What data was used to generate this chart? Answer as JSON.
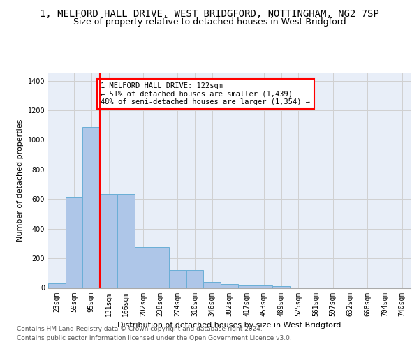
{
  "title_line1": "1, MELFORD HALL DRIVE, WEST BRIDGFORD, NOTTINGHAM, NG2 7SP",
  "title_line2": "Size of property relative to detached houses in West Bridgford",
  "xlabel": "Distribution of detached houses by size in West Bridgford",
  "ylabel": "Number of detached properties",
  "footer_line1": "Contains HM Land Registry data © Crown copyright and database right 2024.",
  "footer_line2": "Contains public sector information licensed under the Open Government Licence v3.0.",
  "bar_labels": [
    "23sqm",
    "59sqm",
    "95sqm",
    "131sqm",
    "166sqm",
    "202sqm",
    "238sqm",
    "274sqm",
    "310sqm",
    "346sqm",
    "382sqm",
    "417sqm",
    "453sqm",
    "489sqm",
    "525sqm",
    "561sqm",
    "597sqm",
    "632sqm",
    "668sqm",
    "704sqm",
    "740sqm"
  ],
  "bar_values": [
    30,
    615,
    1085,
    635,
    635,
    275,
    275,
    120,
    120,
    40,
    25,
    15,
    15,
    10,
    0,
    0,
    0,
    0,
    0,
    0,
    0
  ],
  "bar_color": "#aec6e8",
  "bar_edge_color": "#6aaed6",
  "grid_color": "#d0d0d0",
  "background_color": "#e8eef8",
  "vline_color": "red",
  "annotation_text": "1 MELFORD HALL DRIVE: 122sqm\n← 51% of detached houses are smaller (1,439)\n48% of semi-detached houses are larger (1,354) →",
  "annotation_box_color": "white",
  "annotation_box_edge": "red",
  "ylim": [
    0,
    1450
  ],
  "yticks": [
    0,
    200,
    400,
    600,
    800,
    1000,
    1200,
    1400
  ],
  "title_fontsize": 10,
  "subtitle_fontsize": 9,
  "axis_label_fontsize": 8,
  "tick_fontsize": 7,
  "annotation_fontsize": 7.5,
  "footer_fontsize": 6.5
}
